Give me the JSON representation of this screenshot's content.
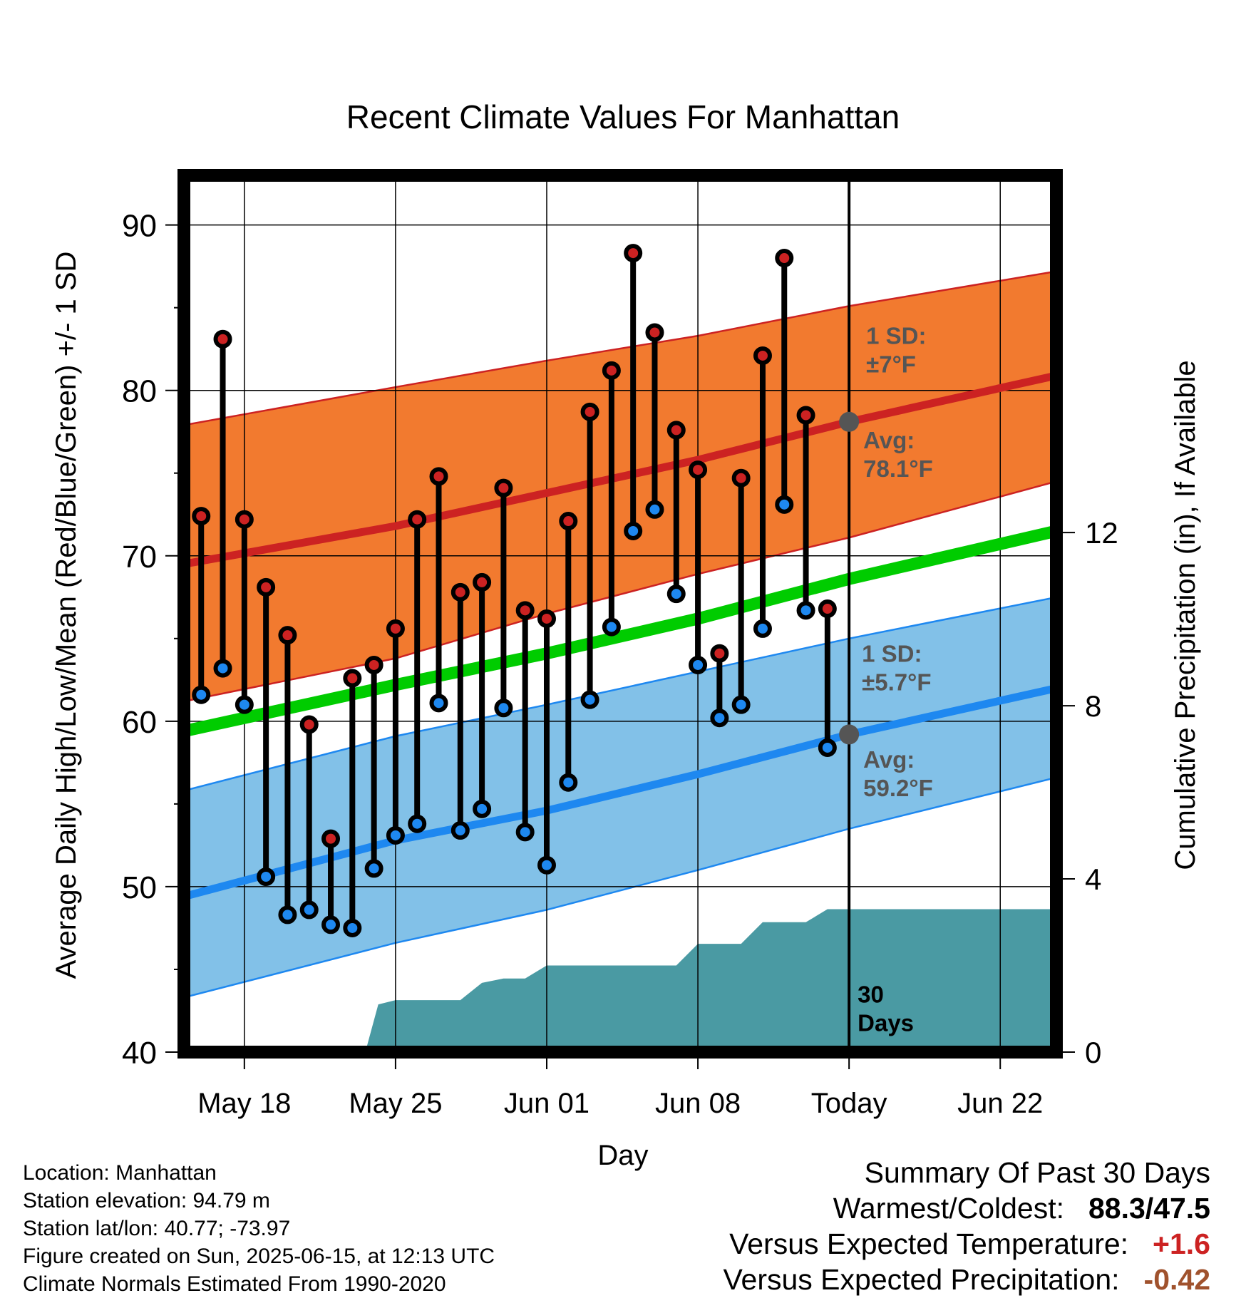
{
  "chart_data": {
    "type": "line",
    "title": "Recent Climate Values For Manhattan",
    "xlabel": "Day",
    "ylabel": "Average Daily High/Low/Mean (Red/Blue/Green) +/- 1 SD",
    "y2label": "Cumulative Precipitation (in), If Available",
    "ylim": [
      40,
      93
    ],
    "y2lim": [
      0,
      20.25
    ],
    "yticks": [
      "40",
      "50",
      "60",
      "70",
      "80",
      "90"
    ],
    "y2ticks": [
      "0",
      "4",
      "8",
      "12"
    ],
    "xticks": [
      "May 18",
      "May 25",
      "Jun 01",
      "Jun 08",
      "Today",
      "Jun 22"
    ],
    "x_tick_days": [
      -28,
      -21,
      -14,
      -7,
      0,
      7
    ],
    "x_range_days": [
      -30.8,
      9.6
    ],
    "grid": true,
    "days": [
      -30,
      -29,
      -28,
      -27,
      -26,
      -25,
      -24,
      -23,
      -22,
      -21,
      -20,
      -19,
      -18,
      -17,
      -16,
      -15,
      -14,
      -13,
      -12,
      -11,
      -10,
      -9,
      -8,
      -7,
      -6,
      -5,
      -4,
      -3,
      -2,
      -1
    ],
    "highs": [
      72.4,
      83.1,
      72.2,
      68.1,
      65.2,
      59.8,
      52.9,
      62.6,
      63.4,
      65.6,
      72.2,
      74.8,
      67.8,
      68.4,
      74.1,
      66.7,
      66.2,
      72.1,
      78.7,
      81.2,
      88.3,
      83.5,
      77.6,
      75.2,
      64.1,
      74.7,
      82.1,
      88.0,
      78.5,
      66.8
    ],
    "lows": [
      61.6,
      63.2,
      61.0,
      50.6,
      48.3,
      48.6,
      47.7,
      47.5,
      51.1,
      53.1,
      53.8,
      61.1,
      53.4,
      54.7,
      60.8,
      53.3,
      51.3,
      56.3,
      61.3,
      65.7,
      71.5,
      72.8,
      67.7,
      63.4,
      60.2,
      61.0,
      65.6,
      73.1,
      66.7,
      58.4
    ],
    "normals": {
      "days": [
        -30.8,
        -21,
        -14,
        -7,
        0,
        9.6
      ],
      "high_mean": [
        69.5,
        71.8,
        73.8,
        75.8,
        78.1,
        80.9
      ],
      "high_upper": [
        77.9,
        80.2,
        81.8,
        83.3,
        85.1,
        87.2
      ],
      "high_lower": [
        61.2,
        63.8,
        66.5,
        68.9,
        71.1,
        74.5
      ],
      "mean": [
        59.4,
        62.2,
        64.1,
        66.2,
        68.6,
        71.5
      ],
      "low_mean": [
        49.4,
        52.8,
        54.6,
        56.8,
        59.2,
        62.0
      ],
      "low_upper": [
        55.8,
        59.1,
        61.0,
        63.0,
        65.0,
        67.5
      ],
      "low_lower": [
        43.3,
        46.6,
        48.6,
        51.0,
        53.5,
        56.6
      ]
    },
    "precip": {
      "days": [
        -30.8,
        -22.4,
        -21.8,
        -21,
        -18,
        -17,
        -16,
        -15,
        -14,
        -13,
        -8,
        -7,
        -6,
        -5,
        -4,
        -2,
        -1,
        0,
        9.6
      ],
      "values": [
        0,
        0,
        1.1,
        1.2,
        1.2,
        1.6,
        1.7,
        1.7,
        2.0,
        2.0,
        2.0,
        2.5,
        2.5,
        2.5,
        3.0,
        3.0,
        3.3,
        3.3,
        3.3
      ]
    },
    "annotations": {
      "high_sd": [
        "1 SD:",
        "±7°F"
      ],
      "high_avg": [
        "Avg:",
        "78.1°F"
      ],
      "low_sd": [
        "1 SD:",
        "±5.7°F"
      ],
      "low_avg": [
        "Avg:",
        "59.2°F"
      ],
      "today_label": [
        "30",
        "Days"
      ]
    },
    "colors": {
      "high": "#cc2222",
      "high_band": "#f27a2f",
      "low": "#1e88f0",
      "low_band": "#82c1e8",
      "mean": "#00cc00",
      "precip": "#4a9aa3",
      "avg_marker": "#555555"
    }
  },
  "footer": {
    "location": "Location: Manhattan",
    "elevation": "Station elevation: 94.79 m",
    "latlon": "Station lat/lon: 40.77; -73.97",
    "created": "Figure created on Sun, 2025-06-15, at 12:13 UTC",
    "normals": "Climate Normals Estimated From 1990-2020"
  },
  "summary": {
    "heading": "Summary Of Past 30 Days",
    "warm_cold_label": "Warmest/Coldest:",
    "warm_cold_value": "88.3/47.5",
    "temp_label": "Versus Expected Temperature:",
    "temp_value": "+1.6",
    "temp_color": "#cc2222",
    "precip_label": "Versus Expected Precipitation:",
    "precip_value": "-0.42",
    "precip_color": "#a0522d"
  }
}
